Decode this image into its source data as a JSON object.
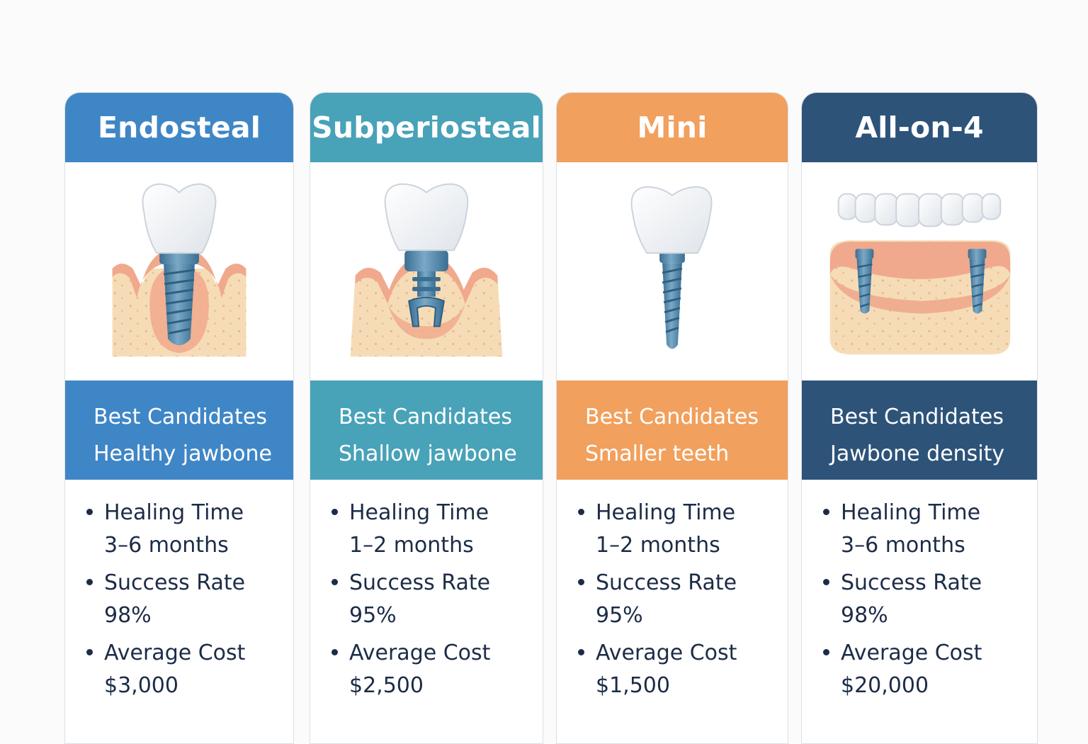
{
  "colors": {
    "endosteal": "#3f86c6",
    "subperiosteal": "#48a2b8",
    "mini": "#f1a05d",
    "all_on_4": "#2d5379",
    "text_dark": "#1c2c47",
    "gum": "#f0a98c",
    "bone": "#f6dcb6",
    "screw": "#4f87aa"
  },
  "cards": [
    {
      "title": "Endosteal",
      "icon": "endosteal-implant-icon",
      "candidates_label": "Best Candidates",
      "candidates_value": "Healthy jawbone",
      "stats": [
        {
          "label": "Healing Time",
          "value": "3–6 months"
        },
        {
          "label": "Success Rate",
          "value": "98%"
        },
        {
          "label": "Average Cost",
          "value": "$3,000"
        }
      ]
    },
    {
      "title": "Subperiosteal",
      "icon": "subperiosteal-implant-icon",
      "candidates_label": "Best Candidates",
      "candidates_value": "Shallow jawbone",
      "stats": [
        {
          "label": "Healing Time",
          "value": "1–2 months"
        },
        {
          "label": "Success Rate",
          "value": "95%"
        },
        {
          "label": "Average Cost",
          "value": "$2,500"
        }
      ]
    },
    {
      "title": "Mini",
      "icon": "mini-implant-icon",
      "candidates_label": "Best Candidates",
      "candidates_value": "Smaller teeth",
      "stats": [
        {
          "label": "Healing Time",
          "value": "1–2 months"
        },
        {
          "label": "Success Rate",
          "value": "95%"
        },
        {
          "label": "Average Cost",
          "value": "$1,500"
        }
      ]
    },
    {
      "title": "All-on-4",
      "icon": "all-on-4-implant-icon",
      "candidates_label": "Best Candidates",
      "candidates_value": "Jawbone density",
      "stats": [
        {
          "label": "Healing Time",
          "value": "3–6 months"
        },
        {
          "label": "Success Rate",
          "value": "98%"
        },
        {
          "label": "Average Cost",
          "value": "$20,000"
        }
      ]
    }
  ]
}
